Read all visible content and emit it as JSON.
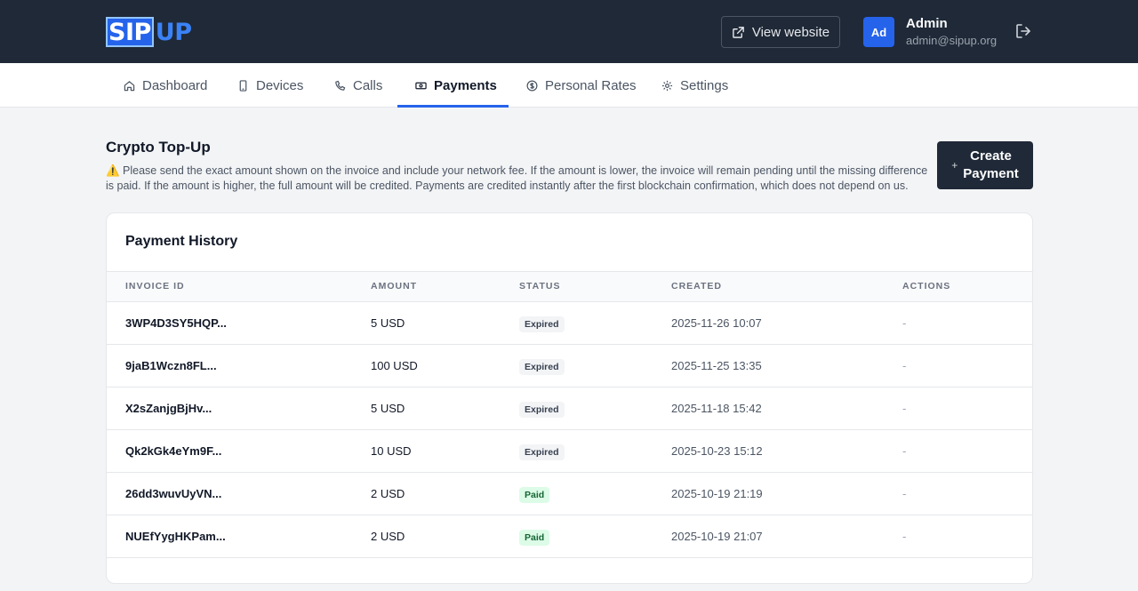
{
  "header": {
    "logo_primary": "SIP",
    "logo_secondary": "UP",
    "view_website_label": "View website",
    "avatar_initials": "Ad",
    "user_name": "Admin",
    "user_email": "admin@sipup.org",
    "icons": [
      "external-link-icon",
      "logout-icon"
    ]
  },
  "nav": {
    "items": [
      {
        "label": "Dashboard",
        "icon": "home-icon"
      },
      {
        "label": "Devices",
        "icon": "phone-device-icon"
      },
      {
        "label": "Calls",
        "icon": "phone-icon"
      },
      {
        "label": "Payments",
        "icon": "money-icon",
        "active": true
      },
      {
        "label": "Personal Rates",
        "icon": "dollar-icon"
      },
      {
        "label": "Settings",
        "icon": "gear-icon"
      }
    ]
  },
  "main": {
    "title": "Crypto Top-Up",
    "notice": "⚠️ Please send the exact amount shown on the invoice and include your network fee. If the amount is lower, the invoice will remain pending until the missing difference is paid. If the amount is higher, the full amount will be credited. Payments are credited instantly after the first blockchain confirmation, which does not depend on us.",
    "create_button_line1": "Create",
    "create_button_line2": "Payment",
    "create_button_plus": "+"
  },
  "history": {
    "title": "Payment History",
    "columns": [
      "INVOICE ID",
      "AMOUNT",
      "STATUS",
      "CREATED",
      "ACTIONS"
    ],
    "rows": [
      {
        "id": "3WP4D3SY5HQP...",
        "amount": "5 USD",
        "status": "Expired",
        "created": "2025-11-26 10:07",
        "actions": "-"
      },
      {
        "id": "9jaB1Wczn8FL...",
        "amount": "100 USD",
        "status": "Expired",
        "created": "2025-11-25 13:35",
        "actions": "-"
      },
      {
        "id": "X2sZanjgBjHv...",
        "amount": "5 USD",
        "status": "Expired",
        "created": "2025-11-18 15:42",
        "actions": "-"
      },
      {
        "id": "Qk2kGk4eYm9F...",
        "amount": "10 USD",
        "status": "Expired",
        "created": "2025-10-23 15:12",
        "actions": "-"
      },
      {
        "id": "26dd3wuvUyVN...",
        "amount": "2 USD",
        "status": "Paid",
        "created": "2025-10-19 21:19",
        "actions": "-"
      },
      {
        "id": "NUEfYygHKPam...",
        "amount": "2 USD",
        "status": "Paid",
        "created": "2025-10-19 21:07",
        "actions": "-"
      }
    ]
  },
  "colors": {
    "topbar": "#1f2937",
    "accent": "#2563eb",
    "paid_badge": "#dcfce7",
    "expired_badge": "#f3f4f6"
  }
}
